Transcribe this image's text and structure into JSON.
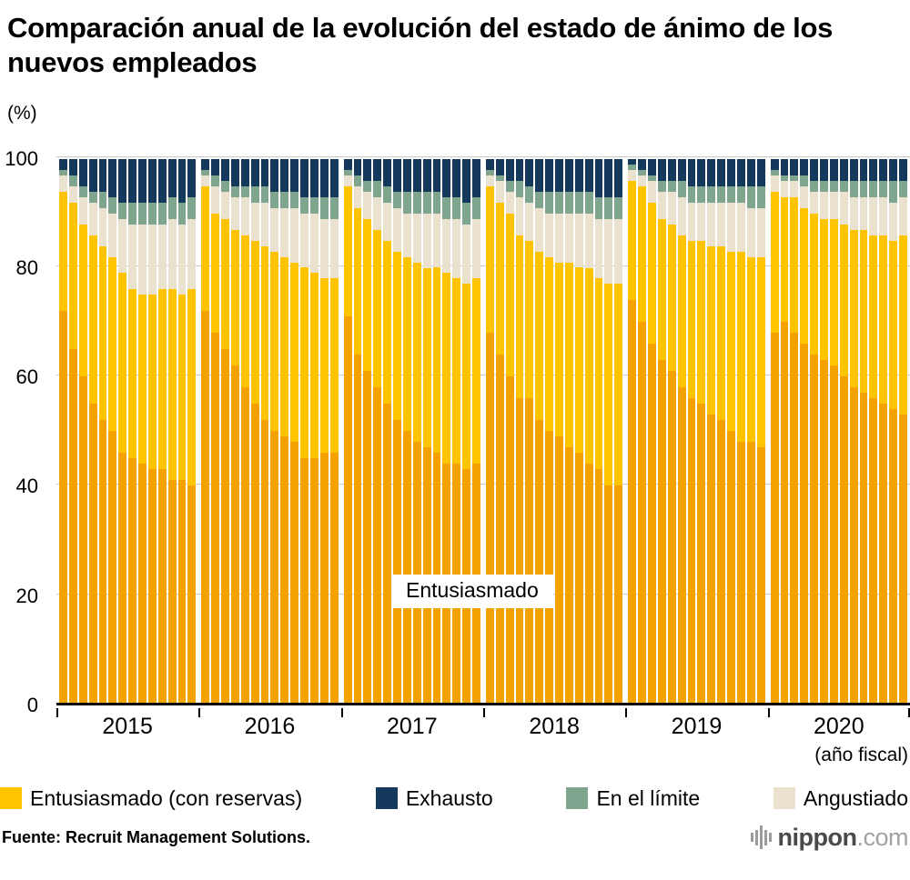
{
  "title": "Comparación anual de la evolución del estado de ánimo de los nuevos empleados",
  "source": "Fuente: Recruit Management Solutions.",
  "logo": {
    "name": "nippon",
    "tld": ".com"
  },
  "chart_data": {
    "type": "bar",
    "stacked": true,
    "title": "Comparación anual de la evolución del estado de ánimo de los nuevos empleados",
    "unit_label": "(%)",
    "x_axis_label": "(año fiscal)",
    "annotation": "Entusiasmado",
    "ylim": [
      0,
      100
    ],
    "yticks": [
      0,
      20,
      40,
      60,
      80,
      100
    ],
    "grid": true,
    "legend_position": "bottom",
    "series": [
      {
        "name": "Entusiasmado",
        "color": "#F5A200"
      },
      {
        "name": "Entusiasmado (con reservas)",
        "color": "#FFC400"
      },
      {
        "name": "Angustiado",
        "color": "#EAE2CF"
      },
      {
        "name": "En el límite",
        "color": "#7FA58F"
      },
      {
        "name": "Exhausto",
        "color": "#14395C"
      }
    ],
    "categories": [
      "2015",
      "2016",
      "2017",
      "2018",
      "2019",
      "2020"
    ],
    "groups": [
      {
        "year": "2015",
        "bars": [
          [
            72,
            22,
            3,
            1,
            2
          ],
          [
            65,
            27,
            3,
            2,
            3
          ],
          [
            60,
            28,
            5,
            2,
            5
          ],
          [
            55,
            31,
            6,
            2,
            6
          ],
          [
            52,
            32,
            7,
            3,
            6
          ],
          [
            50,
            32,
            8,
            3,
            7
          ],
          [
            46,
            33,
            10,
            3,
            8
          ],
          [
            45,
            31,
            12,
            4,
            8
          ],
          [
            44,
            31,
            13,
            4,
            8
          ],
          [
            43,
            32,
            13,
            4,
            8
          ],
          [
            43,
            33,
            12,
            4,
            8
          ],
          [
            41,
            35,
            13,
            4,
            7
          ],
          [
            41,
            34,
            13,
            4,
            8
          ],
          [
            40,
            36,
            13,
            4,
            7
          ]
        ]
      },
      {
        "year": "2016",
        "bars": [
          [
            72,
            23,
            2,
            1,
            2
          ],
          [
            68,
            22,
            5,
            2,
            3
          ],
          [
            65,
            24,
            5,
            2,
            4
          ],
          [
            62,
            25,
            6,
            2,
            5
          ],
          [
            58,
            28,
            7,
            2,
            5
          ],
          [
            55,
            30,
            7,
            3,
            5
          ],
          [
            52,
            32,
            8,
            3,
            5
          ],
          [
            50,
            33,
            8,
            3,
            6
          ],
          [
            49,
            33,
            9,
            3,
            6
          ],
          [
            48,
            33,
            10,
            3,
            6
          ],
          [
            45,
            35,
            10,
            3,
            7
          ],
          [
            45,
            34,
            11,
            3,
            7
          ],
          [
            46,
            32,
            11,
            4,
            7
          ],
          [
            46,
            32,
            11,
            4,
            7
          ]
        ]
      },
      {
        "year": "2017",
        "bars": [
          [
            71,
            24,
            2,
            1,
            2
          ],
          [
            64,
            27,
            4,
            2,
            3
          ],
          [
            61,
            28,
            5,
            2,
            4
          ],
          [
            58,
            29,
            6,
            3,
            4
          ],
          [
            55,
            30,
            7,
            3,
            5
          ],
          [
            52,
            31,
            8,
            3,
            6
          ],
          [
            50,
            32,
            8,
            4,
            6
          ],
          [
            48,
            33,
            9,
            4,
            6
          ],
          [
            47,
            33,
            10,
            4,
            6
          ],
          [
            46,
            34,
            10,
            4,
            6
          ],
          [
            44,
            35,
            10,
            4,
            7
          ],
          [
            44,
            34,
            11,
            4,
            7
          ],
          [
            43,
            34,
            11,
            4,
            8
          ],
          [
            44,
            34,
            11,
            4,
            7
          ]
        ]
      },
      {
        "year": "2018",
        "bars": [
          [
            68,
            27,
            2,
            1,
            2
          ],
          [
            64,
            28,
            4,
            1,
            3
          ],
          [
            60,
            30,
            4,
            2,
            4
          ],
          [
            56,
            30,
            7,
            3,
            4
          ],
          [
            56,
            29,
            7,
            3,
            5
          ],
          [
            52,
            31,
            8,
            3,
            6
          ],
          [
            50,
            32,
            8,
            4,
            6
          ],
          [
            49,
            32,
            9,
            4,
            6
          ],
          [
            47,
            34,
            9,
            4,
            6
          ],
          [
            46,
            34,
            10,
            4,
            6
          ],
          [
            44,
            36,
            10,
            4,
            6
          ],
          [
            43,
            35,
            11,
            4,
            7
          ],
          [
            40,
            37,
            12,
            4,
            7
          ],
          [
            40,
            37,
            12,
            4,
            7
          ]
        ]
      },
      {
        "year": "2019",
        "bars": [
          [
            74,
            22,
            2,
            1,
            1
          ],
          [
            70,
            25,
            2,
            1,
            2
          ],
          [
            66,
            26,
            4,
            1,
            3
          ],
          [
            63,
            26,
            5,
            2,
            4
          ],
          [
            61,
            27,
            6,
            2,
            4
          ],
          [
            58,
            28,
            7,
            3,
            4
          ],
          [
            56,
            29,
            7,
            3,
            5
          ],
          [
            55,
            30,
            7,
            3,
            5
          ],
          [
            53,
            31,
            8,
            3,
            5
          ],
          [
            52,
            32,
            8,
            3,
            5
          ],
          [
            50,
            33,
            9,
            3,
            5
          ],
          [
            48,
            35,
            9,
            3,
            5
          ],
          [
            48,
            34,
            9,
            4,
            5
          ],
          [
            47,
            35,
            9,
            4,
            5
          ]
        ]
      },
      {
        "year": "2020",
        "bars": [
          [
            68,
            26,
            3,
            1,
            2
          ],
          [
            70,
            23,
            3,
            1,
            3
          ],
          [
            68,
            25,
            3,
            1,
            3
          ],
          [
            66,
            25,
            4,
            2,
            3
          ],
          [
            64,
            26,
            4,
            2,
            4
          ],
          [
            63,
            26,
            5,
            2,
            4
          ],
          [
            62,
            27,
            5,
            2,
            4
          ],
          [
            60,
            28,
            6,
            2,
            4
          ],
          [
            58,
            29,
            6,
            3,
            4
          ],
          [
            57,
            30,
            6,
            3,
            4
          ],
          [
            56,
            30,
            7,
            3,
            4
          ],
          [
            55,
            31,
            7,
            3,
            4
          ],
          [
            54,
            31,
            7,
            4,
            4
          ],
          [
            53,
            33,
            7,
            3,
            4
          ]
        ]
      }
    ],
    "legend": [
      {
        "label": "Entusiasmado (con reservas)",
        "color": "#FFC400"
      },
      {
        "label": "Exhausto",
        "color": "#14395C"
      },
      {
        "label": "En el límite",
        "color": "#7FA58F"
      },
      {
        "label": "Angustiado",
        "color": "#EAE2CF"
      }
    ]
  }
}
